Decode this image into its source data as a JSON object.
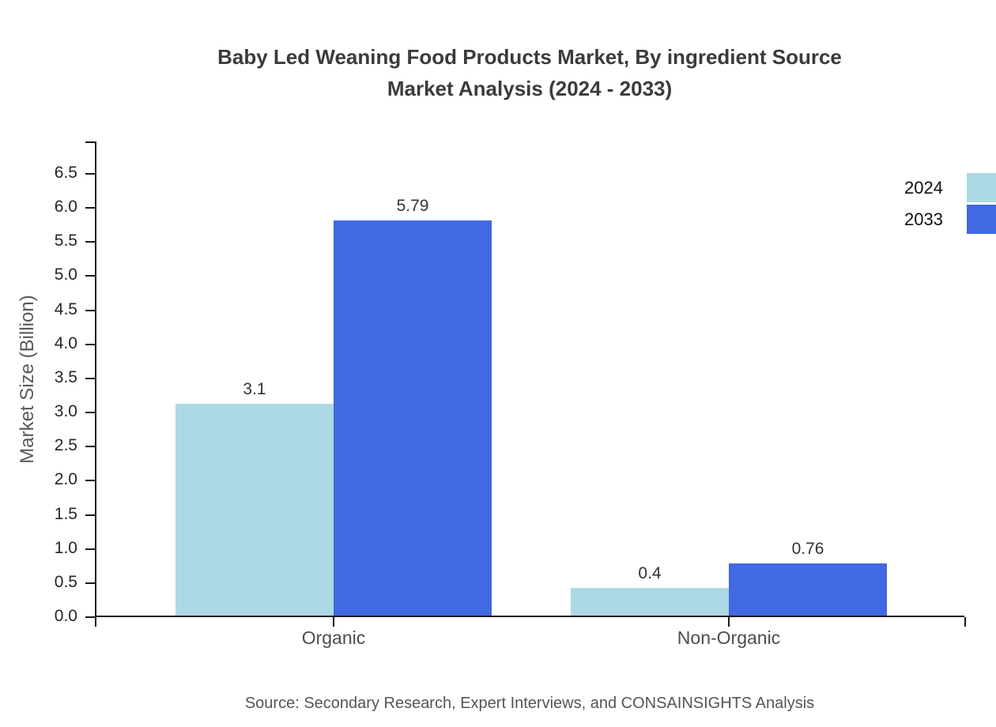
{
  "chart_data": {
    "type": "bar",
    "title": "Baby Led Weaning Food Products Market, By ingredient Source Market Analysis (2024 - 2033)",
    "title_lines": [
      "Baby Led Weaning Food Products Market, By ingredient Source",
      "Market Analysis (2024 - 2033)"
    ],
    "categories": [
      "Organic",
      "Non-Organic"
    ],
    "series": [
      {
        "name": "2024",
        "color": "#add8e6",
        "values": [
          3.1,
          0.4
        ],
        "labels": [
          "3.1",
          "0.4"
        ]
      },
      {
        "name": "2033",
        "color": "#4169e1",
        "values": [
          5.79,
          0.76
        ],
        "labels": [
          "5.79",
          "0.76"
        ]
      }
    ],
    "xlabel": "",
    "ylabel": "Market Size (Billion)",
    "ylim": [
      0.0,
      6.5
    ],
    "ytick_step": 0.5,
    "ytick_format_decimals": 1,
    "grid": false,
    "legend_position": "top-right"
  },
  "source_note": "Source: Secondary Research, Expert Interviews, and CONSAINSIGHTS Analysis",
  "colors": {
    "axis": "#1a1a1a",
    "title_text": "#3b3b3b",
    "secondary_text": "#595959",
    "value_label_text": "#333333"
  }
}
